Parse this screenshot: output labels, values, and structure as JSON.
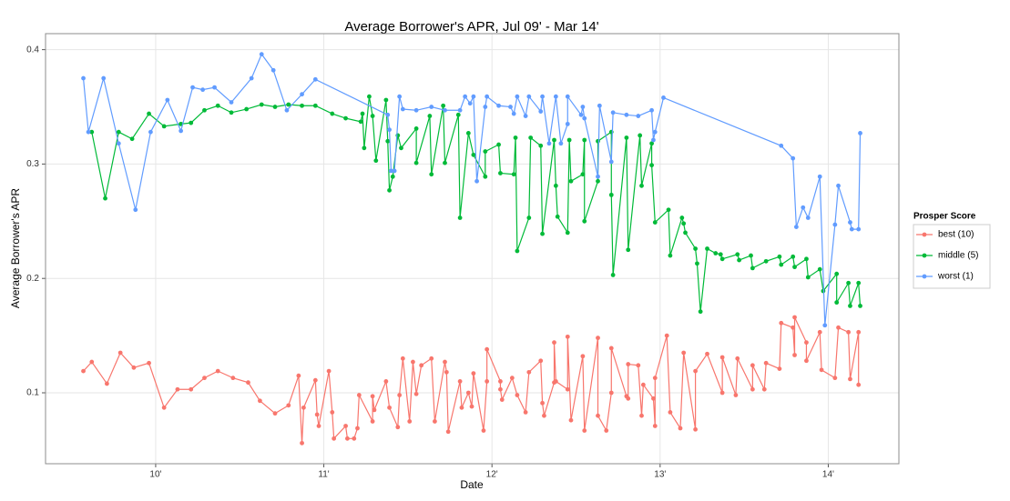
{
  "chart_data": {
    "type": "line",
    "title": "Average Borrower's APR, Jul 09' - Mar 14'",
    "x_label": "Date",
    "y_label": "Average Borrower's APR",
    "legend_title": "Prosper Score",
    "legend": "right",
    "grid": true,
    "xlim": [
      2009.345,
      2014.42
    ],
    "ylim": [
      0.038,
      0.414
    ],
    "xticks": [
      {
        "value": 2010,
        "label": "10'"
      },
      {
        "value": 2011,
        "label": "11'"
      },
      {
        "value": 2012,
        "label": "12'"
      },
      {
        "value": 2013,
        "label": "13'"
      },
      {
        "value": 2014,
        "label": "14'"
      }
    ],
    "yticks": [
      0.1,
      0.2,
      0.3,
      0.4
    ],
    "series": [
      {
        "name": "best (10)",
        "color": "#f8766d",
        "x": [
          2009.57,
          2009.62,
          2009.71,
          2009.79,
          2009.87,
          2009.96,
          2010.05,
          2010.13,
          2010.21,
          2010.29,
          2010.37,
          2010.46,
          2010.55,
          2010.62,
          2010.71,
          2010.79,
          2010.85,
          2010.87,
          2010.88,
          2010.95,
          2010.96,
          2010.97,
          2011.03,
          2011.05,
          2011.06,
          2011.13,
          2011.14,
          2011.18,
          2011.2,
          2011.21,
          2011.29,
          2011.29,
          2011.3,
          2011.37,
          2011.39,
          2011.44,
          2011.45,
          2011.47,
          2011.51,
          2011.53,
          2011.55,
          2011.58,
          2011.64,
          2011.66,
          2011.72,
          2011.73,
          2011.74,
          2011.81,
          2011.82,
          2011.86,
          2011.88,
          2011.89,
          2011.95,
          2011.97,
          2011.97,
          2012.05,
          2012.05,
          2012.06,
          2012.12,
          2012.15,
          2012.2,
          2012.22,
          2012.29,
          2012.3,
          2012.31,
          2012.37,
          2012.37,
          2012.38,
          2012.45,
          2012.45,
          2012.47,
          2012.54,
          2012.55,
          2012.63,
          2012.63,
          2012.68,
          2012.71,
          2012.71,
          2012.8,
          2012.81,
          2012.81,
          2012.87,
          2012.89,
          2012.9,
          2012.96,
          2012.97,
          2012.97,
          2013.04,
          2013.06,
          2013.12,
          2013.14,
          2013.21,
          2013.21,
          2013.28,
          2013.37,
          2013.37,
          2013.45,
          2013.46,
          2013.55,
          2013.55,
          2013.62,
          2013.63,
          2013.71,
          2013.72,
          2013.79,
          2013.8,
          2013.8,
          2013.87,
          2013.87,
          2013.95,
          2013.96,
          2014.04,
          2014.06,
          2014.12,
          2014.13,
          2014.18,
          2014.18
        ],
        "values": [
          0.119,
          0.127,
          0.108,
          0.135,
          0.122,
          0.126,
          0.087,
          0.103,
          0.103,
          0.113,
          0.119,
          0.113,
          0.109,
          0.093,
          0.082,
          0.089,
          0.115,
          0.056,
          0.087,
          0.111,
          0.081,
          0.071,
          0.119,
          0.083,
          0.06,
          0.071,
          0.06,
          0.06,
          0.069,
          0.098,
          0.075,
          0.097,
          0.085,
          0.11,
          0.087,
          0.07,
          0.098,
          0.13,
          0.075,
          0.127,
          0.099,
          0.124,
          0.13,
          0.075,
          0.127,
          0.118,
          0.066,
          0.11,
          0.087,
          0.1,
          0.088,
          0.117,
          0.067,
          0.11,
          0.138,
          0.11,
          0.103,
          0.094,
          0.113,
          0.098,
          0.083,
          0.118,
          0.128,
          0.091,
          0.08,
          0.109,
          0.144,
          0.11,
          0.103,
          0.149,
          0.076,
          0.132,
          0.067,
          0.148,
          0.08,
          0.067,
          0.1,
          0.139,
          0.097,
          0.095,
          0.125,
          0.124,
          0.08,
          0.107,
          0.095,
          0.071,
          0.113,
          0.15,
          0.083,
          0.069,
          0.135,
          0.068,
          0.119,
          0.134,
          0.1,
          0.131,
          0.098,
          0.13,
          0.103,
          0.124,
          0.103,
          0.126,
          0.121,
          0.161,
          0.157,
          0.133,
          0.166,
          0.144,
          0.128,
          0.153,
          0.12,
          0.113,
          0.157,
          0.153,
          0.112,
          0.153,
          0.107
        ]
      },
      {
        "name": "middle (5)",
        "color": "#00ba38",
        "x": [
          2009.62,
          2009.7,
          2009.78,
          2009.86,
          2009.96,
          2010.05,
          2010.15,
          2010.21,
          2010.29,
          2010.37,
          2010.45,
          2010.54,
          2010.63,
          2010.71,
          2010.79,
          2010.87,
          2010.95,
          2011.05,
          2011.13,
          2011.22,
          2011.23,
          2011.24,
          2011.27,
          2011.29,
          2011.31,
          2011.37,
          2011.38,
          2011.39,
          2011.41,
          2011.44,
          2011.46,
          2011.55,
          2011.55,
          2011.63,
          2011.64,
          2011.71,
          2011.72,
          2011.8,
          2011.81,
          2011.86,
          2011.89,
          2011.96,
          2011.96,
          2012.04,
          2012.05,
          2012.13,
          2012.14,
          2012.15,
          2012.22,
          2012.23,
          2012.29,
          2012.3,
          2012.37,
          2012.38,
          2012.39,
          2012.45,
          2012.46,
          2012.47,
          2012.54,
          2012.55,
          2012.55,
          2012.63,
          2012.63,
          2012.71,
          2012.71,
          2012.72,
          2012.8,
          2012.81,
          2012.88,
          2012.89,
          2012.95,
          2012.95,
          2012.97,
          2013.05,
          2013.06,
          2013.13,
          2013.14,
          2013.15,
          2013.21,
          2013.22,
          2013.24,
          2013.28,
          2013.33,
          2013.36,
          2013.37,
          2013.46,
          2013.47,
          2013.54,
          2013.55,
          2013.63,
          2013.71,
          2013.72,
          2013.79,
          2013.8,
          2013.87,
          2013.88,
          2013.95,
          2013.97,
          2014.05,
          2014.05,
          2014.12,
          2014.13,
          2014.18,
          2014.19
        ],
        "values": [
          0.328,
          0.27,
          0.328,
          0.322,
          0.344,
          0.333,
          0.335,
          0.336,
          0.347,
          0.351,
          0.345,
          0.348,
          0.352,
          0.35,
          0.352,
          0.351,
          0.351,
          0.344,
          0.34,
          0.337,
          0.344,
          0.314,
          0.359,
          0.342,
          0.303,
          0.356,
          0.32,
          0.277,
          0.289,
          0.325,
          0.314,
          0.331,
          0.301,
          0.342,
          0.291,
          0.351,
          0.301,
          0.343,
          0.253,
          0.327,
          0.308,
          0.289,
          0.311,
          0.317,
          0.292,
          0.291,
          0.323,
          0.224,
          0.253,
          0.323,
          0.316,
          0.239,
          0.321,
          0.281,
          0.254,
          0.24,
          0.321,
          0.285,
          0.291,
          0.321,
          0.25,
          0.285,
          0.32,
          0.328,
          0.273,
          0.203,
          0.323,
          0.225,
          0.325,
          0.281,
          0.318,
          0.299,
          0.249,
          0.26,
          0.22,
          0.253,
          0.248,
          0.24,
          0.226,
          0.213,
          0.171,
          0.226,
          0.222,
          0.221,
          0.217,
          0.221,
          0.216,
          0.22,
          0.209,
          0.215,
          0.219,
          0.212,
          0.219,
          0.21,
          0.217,
          0.201,
          0.208,
          0.189,
          0.204,
          0.179,
          0.196,
          0.176,
          0.196,
          0.176
        ]
      },
      {
        "name": "worst (1)",
        "color": "#619cff",
        "x": [
          2009.57,
          2009.6,
          2009.69,
          2009.78,
          2009.88,
          2009.97,
          2010.07,
          2010.15,
          2010.22,
          2010.28,
          2010.35,
          2010.45,
          2010.57,
          2010.63,
          2010.7,
          2010.78,
          2010.87,
          2010.95,
          2011.38,
          2011.39,
          2011.4,
          2011.42,
          2011.45,
          2011.47,
          2011.55,
          2011.64,
          2011.72,
          2011.81,
          2011.84,
          2011.87,
          2011.89,
          2011.91,
          2011.96,
          2011.97,
          2012.04,
          2012.11,
          2012.13,
          2012.15,
          2012.2,
          2012.22,
          2012.29,
          2012.3,
          2012.34,
          2012.38,
          2012.41,
          2012.45,
          2012.45,
          2012.53,
          2012.54,
          2012.55,
          2012.63,
          2012.64,
          2012.71,
          2012.72,
          2012.8,
          2012.87,
          2012.95,
          2012.96,
          2012.97,
          2013.02,
          2013.72,
          2013.79,
          2013.81,
          2013.85,
          2013.88,
          2013.95,
          2013.98,
          2014.04,
          2014.06,
          2014.13,
          2014.14,
          2014.18,
          2014.19
        ],
        "values": [
          0.375,
          0.328,
          0.375,
          0.318,
          0.26,
          0.328,
          0.356,
          0.329,
          0.367,
          0.365,
          0.367,
          0.354,
          0.375,
          0.396,
          0.382,
          0.347,
          0.361,
          0.374,
          0.343,
          0.33,
          0.294,
          0.294,
          0.359,
          0.348,
          0.347,
          0.35,
          0.347,
          0.347,
          0.359,
          0.353,
          0.359,
          0.285,
          0.35,
          0.359,
          0.351,
          0.35,
          0.344,
          0.359,
          0.342,
          0.359,
          0.346,
          0.359,
          0.318,
          0.359,
          0.318,
          0.335,
          0.359,
          0.343,
          0.35,
          0.34,
          0.289,
          0.351,
          0.302,
          0.345,
          0.343,
          0.342,
          0.347,
          0.321,
          0.328,
          0.358,
          0.316,
          0.305,
          0.245,
          0.262,
          0.253,
          0.289,
          0.159,
          0.247,
          0.281,
          0.249,
          0.243,
          0.243,
          0.327
        ]
      }
    ]
  }
}
